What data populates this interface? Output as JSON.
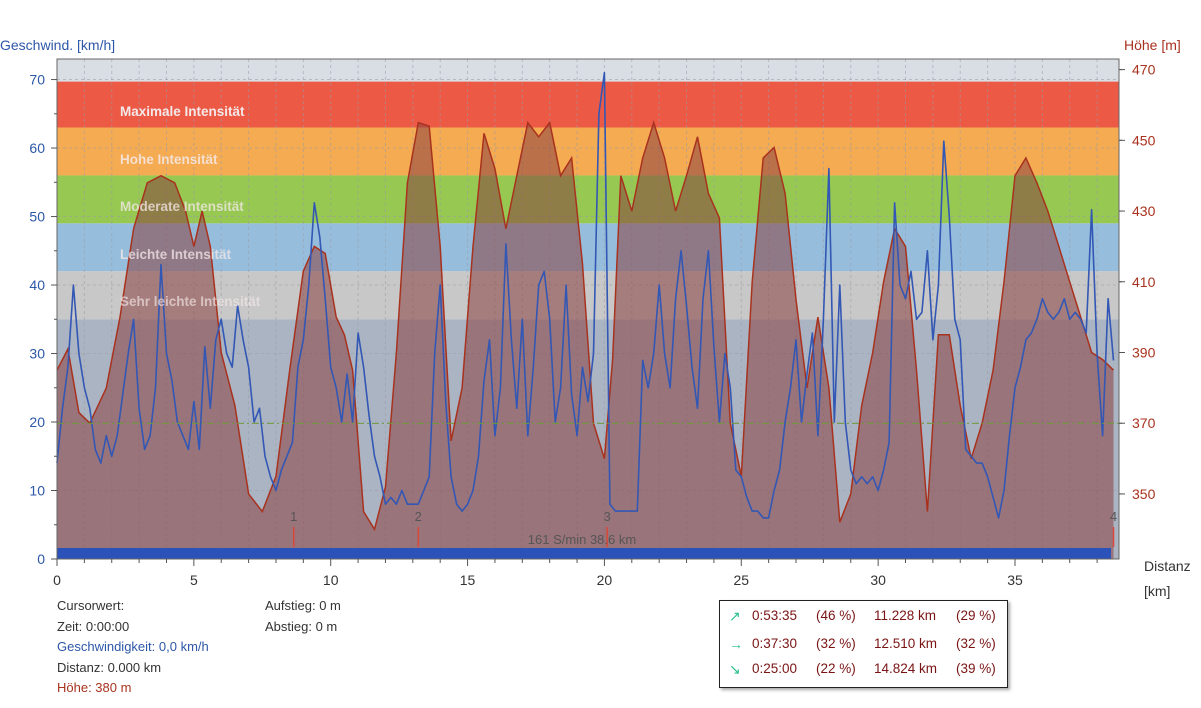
{
  "chart_data": {
    "type": "line",
    "left_axis": {
      "label": "Geschwind. [km/h]",
      "range": [
        0,
        73
      ],
      "ticks": [
        0,
        10,
        20,
        30,
        40,
        50,
        60,
        70
      ],
      "color": "#2d57a8"
    },
    "right_axis": {
      "label": "Höhe [m]",
      "range": [
        331.6,
        473
      ],
      "ticks": [
        350,
        370,
        390,
        410,
        430,
        450,
        470
      ],
      "color": "#a8321e"
    },
    "x_axis": {
      "label": "Distanz [km]",
      "label_line1": "Distanz",
      "label_line2": "[km]",
      "range": [
        0,
        38.8
      ],
      "ticks": [
        0,
        5,
        10,
        15,
        20,
        25,
        30,
        35
      ]
    },
    "grid": true,
    "zones": [
      {
        "name": "Maximale Intensität",
        "from": 63,
        "to": 69.7,
        "color": "#ec5a46"
      },
      {
        "name": "Hohe Intensität",
        "from": 56,
        "to": 63,
        "color": "#f4ab52"
      },
      {
        "name": "Moderate Intensität",
        "from": 49,
        "to": 56,
        "color": "#96c852"
      },
      {
        "name": "Leichte Intensität",
        "from": 42,
        "to": 49,
        "color": "#96bedc"
      },
      {
        "name": "Sehr leichte Intensität",
        "from": 35,
        "to": 42,
        "color": "#c8c8c8"
      }
    ],
    "zone_above_color": "#d9dee5",
    "zone_below_color": "#aab4c3",
    "average_speed": 19.8,
    "series": [
      {
        "name": "Höhe",
        "color": "#a8321e",
        "x": [
          0,
          0.4,
          0.8,
          1.2,
          1.8,
          2.3,
          2.8,
          3.3,
          3.8,
          4.3,
          4.7,
          5.0,
          5.3,
          5.6,
          6.0,
          6.5,
          7.0,
          7.5,
          8.0,
          8.5,
          9.0,
          9.4,
          9.8,
          10.2,
          10.5,
          10.8,
          11.2,
          11.6,
          12.0,
          12.4,
          12.8,
          13.2,
          13.6,
          14.0,
          14.4,
          14.8,
          15.2,
          15.6,
          16.0,
          16.4,
          16.8,
          17.2,
          17.6,
          18.0,
          18.4,
          18.8,
          19.2,
          19.6,
          20.0,
          20.3,
          20.6,
          21.0,
          21.4,
          21.8,
          22.2,
          22.6,
          23.0,
          23.4,
          23.8,
          24.2,
          24.6,
          25.0,
          25.4,
          25.8,
          26.2,
          26.6,
          27.0,
          27.4,
          27.8,
          28.2,
          28.6,
          29.0,
          29.4,
          29.8,
          30.2,
          30.6,
          31.0,
          31.4,
          31.8,
          32.2,
          32.6,
          33.0,
          33.4,
          33.8,
          34.2,
          34.6,
          35.0,
          35.4,
          35.8,
          36.2,
          36.6,
          37.0,
          37.4,
          37.8,
          38.2,
          38.6
        ],
        "y": [
          385,
          391,
          373,
          370,
          380,
          400,
          425,
          438,
          440,
          438,
          430,
          420,
          430,
          420,
          390,
          375,
          350,
          345,
          355,
          385,
          413,
          420,
          418,
          400,
          395,
          385,
          345,
          340,
          352,
          390,
          438,
          455,
          454,
          420,
          365,
          380,
          420,
          452,
          442,
          425,
          440,
          455,
          451,
          455,
          440,
          445,
          415,
          370,
          360,
          388,
          440,
          430,
          445,
          455,
          445,
          430,
          440,
          451,
          435,
          428,
          370,
          355,
          410,
          445,
          448,
          435,
          405,
          380,
          400,
          380,
          342,
          350,
          375,
          390,
          410,
          425,
          420,
          385,
          345,
          395,
          395,
          375,
          360,
          370,
          385,
          410,
          440,
          445,
          438,
          430,
          420,
          410,
          400,
          390,
          388,
          385
        ]
      },
      {
        "name": "Geschwindigkeit",
        "color": "#3357b4",
        "x": [
          0,
          0.2,
          0.4,
          0.6,
          0.8,
          1.0,
          1.2,
          1.4,
          1.6,
          1.8,
          2.0,
          2.2,
          2.4,
          2.6,
          2.8,
          3.0,
          3.2,
          3.4,
          3.6,
          3.8,
          4.0,
          4.2,
          4.4,
          4.6,
          4.8,
          5.0,
          5.2,
          5.4,
          5.6,
          5.8,
          6.0,
          6.2,
          6.4,
          6.6,
          6.8,
          7.0,
          7.2,
          7.4,
          7.6,
          7.8,
          8.0,
          8.2,
          8.4,
          8.6,
          8.8,
          9.0,
          9.2,
          9.4,
          9.6,
          9.8,
          10.0,
          10.2,
          10.4,
          10.6,
          10.8,
          11.0,
          11.2,
          11.4,
          11.6,
          11.8,
          12.0,
          12.2,
          12.4,
          12.6,
          12.8,
          13.0,
          13.2,
          13.4,
          13.6,
          13.8,
          14.0,
          14.2,
          14.4,
          14.6,
          14.8,
          15.0,
          15.2,
          15.4,
          15.6,
          15.8,
          16.0,
          16.2,
          16.4,
          16.6,
          16.8,
          17.0,
          17.2,
          17.4,
          17.6,
          17.8,
          18.0,
          18.2,
          18.4,
          18.6,
          18.8,
          19.0,
          19.2,
          19.4,
          19.6,
          19.8,
          20.0,
          20.2,
          20.4,
          20.6,
          20.8,
          21.0,
          21.2,
          21.4,
          21.6,
          21.8,
          22.0,
          22.2,
          22.4,
          22.6,
          22.8,
          23.0,
          23.2,
          23.4,
          23.6,
          23.8,
          24.0,
          24.2,
          24.4,
          24.6,
          24.8,
          25.0,
          25.2,
          25.4,
          25.6,
          25.8,
          26.0,
          26.2,
          26.4,
          26.6,
          26.8,
          27.0,
          27.2,
          27.4,
          27.6,
          27.8,
          28.0,
          28.2,
          28.4,
          28.6,
          28.8,
          29.0,
          29.2,
          29.4,
          29.6,
          29.8,
          30.0,
          30.2,
          30.4,
          30.6,
          30.8,
          31.0,
          31.2,
          31.4,
          31.6,
          31.8,
          32.0,
          32.2,
          32.4,
          32.6,
          32.8,
          33.0,
          33.2,
          33.4,
          33.6,
          33.8,
          34.0,
          34.2,
          34.4,
          34.6,
          34.8,
          35.0,
          35.2,
          35.4,
          35.6,
          35.8,
          36.0,
          36.2,
          36.4,
          36.6,
          36.8,
          37.0,
          37.2,
          37.4,
          37.6,
          37.8,
          38.0,
          38.2,
          38.4,
          38.6
        ],
        "y": [
          14,
          22,
          28,
          40,
          30,
          25,
          22,
          16,
          14,
          18,
          15,
          18,
          24,
          30,
          35,
          22,
          16,
          18,
          25,
          43,
          30,
          26,
          20,
          18,
          16,
          23,
          16,
          31,
          22,
          32,
          35,
          30,
          28,
          37,
          32,
          28,
          20,
          22,
          15,
          12,
          10,
          13,
          15,
          17,
          28,
          32,
          40,
          52,
          47,
          38,
          28,
          25,
          20,
          27,
          20,
          33,
          28,
          21,
          15,
          12,
          8,
          9,
          8,
          10,
          8,
          8,
          8,
          10,
          12,
          30,
          40,
          23,
          12,
          8,
          7,
          8,
          10,
          15,
          26,
          32,
          18,
          25,
          46,
          32,
          22,
          35,
          18,
          28,
          40,
          42,
          35,
          20,
          25,
          40,
          24,
          18,
          28,
          23,
          30,
          65,
          71,
          8,
          7,
          7,
          7,
          7,
          7,
          29,
          25,
          30,
          40,
          30,
          25,
          38,
          45,
          37,
          28,
          22,
          38,
          45,
          31,
          20,
          30,
          25,
          13,
          12,
          9,
          7,
          7,
          6,
          6,
          10,
          13,
          20,
          25,
          32,
          20,
          27,
          33,
          18,
          35,
          57,
          20,
          40,
          20,
          13,
          11,
          12,
          11,
          12,
          10,
          13,
          17,
          52,
          40,
          38,
          42,
          35,
          36,
          45,
          32,
          40,
          61,
          50,
          35,
          32,
          16,
          15,
          14,
          14,
          12,
          9,
          6,
          10,
          18,
          25,
          28,
          32,
          33,
          35,
          38,
          36,
          35,
          36,
          38,
          35,
          36,
          35,
          33,
          51,
          30,
          18,
          38,
          29
        ]
      }
    ],
    "markers": [
      {
        "label": "1",
        "x": 8.65
      },
      {
        "label": "2",
        "x": 13.2
      },
      {
        "label": "3",
        "x": 20.1
      },
      {
        "label": "4",
        "x": 38.6
      }
    ],
    "bottom_label": "161 S/min 38.6 km"
  },
  "zone_labels": {
    "max": "Maximale Intensität",
    "high": "Hohe Intensität",
    "moderate": "Moderate Intensität",
    "light": "Leichte Intensität",
    "very_light": "Sehr leichte Intensität"
  },
  "cursor": {
    "title": "Cursorwert:",
    "time": "Zeit: 0:00:00",
    "speed": "Geschwindigkeit: 0,0 km/h",
    "distance": "Distanz: 0.000 km",
    "altitude": "Höhe:  380 m"
  },
  "climb": {
    "ascent": "Aufstieg: 0 m",
    "descent": "Abstieg: 0 m"
  },
  "summary": [
    {
      "icon": "↗",
      "time": "0:53:35",
      "time_pct": "(46 %)",
      "dist": "11.228 km",
      "dist_pct": "(29 %)"
    },
    {
      "icon": "→",
      "time": "0:37:30",
      "time_pct": "(32 %)",
      "dist": "12.510 km",
      "dist_pct": "(32 %)"
    },
    {
      "icon": "↘",
      "time": "0:25:00",
      "time_pct": "(22 %)",
      "dist": "14.824 km",
      "dist_pct": "(39 %)"
    }
  ]
}
